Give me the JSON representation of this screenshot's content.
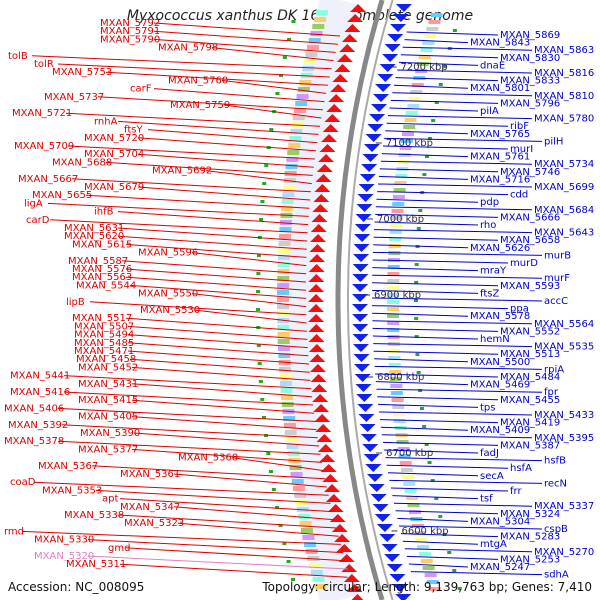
{
  "title": "Myxococcus xanthus DK 1622, complete genome",
  "footer": {
    "accession": "Accession: NC_008095",
    "summary": "Topology: circular; Length: 9,139,763 bp; Genes: 7,410"
  },
  "colors": {
    "left_label": "#dd0000",
    "right_label": "#0000cc",
    "pseudo": "#e080c0",
    "backbone": "#888888"
  },
  "kbp_markers": [
    "7200 kbp",
    "7100 kbp",
    "7000 kbp",
    "6900 kbp",
    "6800 kbp",
    "6700 kbp",
    "6600 kbp"
  ],
  "left_labels": [
    "MXAN_5792",
    "MXAN_5791",
    "MXAN_5790",
    "MXAN_5798",
    "tolB",
    "tolR",
    "MXAN_5753",
    "MXAN_5760",
    "carF",
    "MXAN_5737",
    "MXAN_5759",
    "MXAN_5721",
    "rnhA",
    "ftsY",
    "MXAN_5720",
    "MXAN_5709",
    "MXAN_5704",
    "MXAN_5688",
    "MXAN_5692",
    "MXAN_5667",
    "MXAN_5679",
    "MXAN_5655",
    "ligA",
    "ihfB",
    "carD",
    "MXAN_5631",
    "MXAN_5620",
    "MXAN_5615",
    "MXAN_5596",
    "MXAN_5587",
    "MXAN_5576",
    "MXAN_5563",
    "MXAN_5544",
    "MXAN_5550",
    "lipB",
    "MXAN_5530",
    "MXAN_5517",
    "MXAN_5507",
    "MXAN_5494",
    "MXAN_5485",
    "MXAN_5471",
    "MXAN_5458",
    "MXAN_5452",
    "MXAN_5441",
    "MXAN_5431",
    "MXAN_5416",
    "MXAN_5415",
    "MXAN_5406",
    "MXAN_5405",
    "MXAN_5392",
    "MXAN_5390",
    "MXAN_5378",
    "MXAN_5377",
    "MXAN_5368",
    "MXAN_5367",
    "MXAN_5361",
    "coaD",
    "MXAN_5353",
    "apt",
    "MXAN_5347",
    "MXAN_5338",
    "MXAN_5323",
    "rmd",
    "MXAN_5330",
    "gmd",
    "MXAN_5320",
    "MXAN_5311"
  ],
  "right_labels": [
    "MXAN_5869",
    "MXAN_5843",
    "MXAN_5863",
    "MXAN_5830",
    "dnaE",
    "MXAN_5816",
    "MXAN_5833",
    "MXAN_5801",
    "MXAN_5810",
    "MXAN_5796",
    "pilA",
    "MXAN_5780",
    "ribF",
    "MXAN_5765",
    "pilH",
    "murI",
    "MXAN_5761",
    "MXAN_5734",
    "MXAN_5746",
    "MXAN_5716",
    "MXAN_5699",
    "cdd",
    "pdp",
    "MXAN_5684",
    "MXAN_5666",
    "rho",
    "MXAN_5643",
    "MXAN_5658",
    "MXAN_5626",
    "murB",
    "murD",
    "mraY",
    "murF",
    "MXAN_5593",
    "ftsZ",
    "accC",
    "ppa",
    "MXAN_5578",
    "MXAN_5564",
    "MXAN_5552",
    "hemN",
    "MXAN_5535",
    "MXAN_5513",
    "MXAN_5500",
    "rpiA",
    "MXAN_5484",
    "MXAN_5469",
    "fpr",
    "MXAN_5455",
    "tps",
    "MXAN_5433",
    "MXAN_5419",
    "MXAN_5409",
    "MXAN_5395",
    "MXAN_5387",
    "fadJ",
    "hsfB",
    "hsfA",
    "secA",
    "recN",
    "frr",
    "tsf",
    "MXAN_5337",
    "MXAN_5324",
    "MXAN_5304",
    "cspB",
    "MXAN_5283",
    "mtgA",
    "MXAN_5270",
    "MXAN_5253",
    "MXAN_5247",
    "sdhA"
  ]
}
